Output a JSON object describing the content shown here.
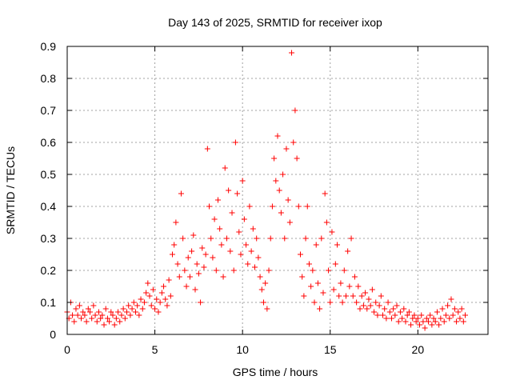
{
  "chart_data": {
    "type": "scatter",
    "title": "Day 143 of 2025, SRMTID for receiver ixop",
    "xlabel": "GPS time / hours",
    "ylabel": "SRMTID / TECUs",
    "xlim": [
      0,
      24
    ],
    "ylim": [
      0,
      0.9
    ],
    "x_ticks": [
      0,
      5,
      10,
      15,
      20
    ],
    "y_ticks": [
      0,
      0.1,
      0.2,
      0.3,
      0.4,
      0.5,
      0.6,
      0.7,
      0.8,
      0.9
    ],
    "x_tick_labels": [
      "0",
      "5",
      "10",
      "15",
      "20"
    ],
    "y_tick_labels": [
      "0",
      "0.1",
      "0.2",
      "0.3",
      "0.4",
      "0.5",
      "0.6",
      "0.7",
      "0.8",
      "0.9"
    ],
    "grid": true,
    "marker": "+",
    "color": "#ff0000",
    "series": [
      {
        "name": "SRMTID",
        "points": [
          [
            0.0,
            0.07
          ],
          [
            0.1,
            0.05
          ],
          [
            0.2,
            0.1
          ],
          [
            0.3,
            0.06
          ],
          [
            0.4,
            0.04
          ],
          [
            0.5,
            0.08
          ],
          [
            0.6,
            0.06
          ],
          [
            0.7,
            0.09
          ],
          [
            0.8,
            0.05
          ],
          [
            0.9,
            0.07
          ],
          [
            1.0,
            0.06
          ],
          [
            1.1,
            0.04
          ],
          [
            1.2,
            0.08
          ],
          [
            1.3,
            0.07
          ],
          [
            1.4,
            0.05
          ],
          [
            1.5,
            0.09
          ],
          [
            1.6,
            0.06
          ],
          [
            1.7,
            0.04
          ],
          [
            1.8,
            0.07
          ],
          [
            1.9,
            0.05
          ],
          [
            2.0,
            0.06
          ],
          [
            2.1,
            0.03
          ],
          [
            2.2,
            0.08
          ],
          [
            2.3,
            0.05
          ],
          [
            2.4,
            0.04
          ],
          [
            2.5,
            0.07
          ],
          [
            2.6,
            0.06
          ],
          [
            2.7,
            0.03
          ],
          [
            2.8,
            0.05
          ],
          [
            2.9,
            0.07
          ],
          [
            3.0,
            0.04
          ],
          [
            3.1,
            0.06
          ],
          [
            3.2,
            0.08
          ],
          [
            3.3,
            0.05
          ],
          [
            3.4,
            0.07
          ],
          [
            3.5,
            0.09
          ],
          [
            3.6,
            0.06
          ],
          [
            3.7,
            0.08
          ],
          [
            3.8,
            0.1
          ],
          [
            3.9,
            0.07
          ],
          [
            4.0,
            0.09
          ],
          [
            4.1,
            0.06
          ],
          [
            4.2,
            0.11
          ],
          [
            4.3,
            0.08
          ],
          [
            4.4,
            0.1
          ],
          [
            4.5,
            0.13
          ],
          [
            4.6,
            0.16
          ],
          [
            4.7,
            0.12
          ],
          [
            4.8,
            0.09
          ],
          [
            4.9,
            0.14
          ],
          [
            5.0,
            0.08
          ],
          [
            5.1,
            0.11
          ],
          [
            5.2,
            0.07
          ],
          [
            5.3,
            0.1
          ],
          [
            5.4,
            0.13
          ],
          [
            5.5,
            0.15
          ],
          [
            5.6,
            0.11
          ],
          [
            5.7,
            0.09
          ],
          [
            5.8,
            0.17
          ],
          [
            5.9,
            0.12
          ],
          [
            6.0,
            0.25
          ],
          [
            6.1,
            0.28
          ],
          [
            6.2,
            0.35
          ],
          [
            6.3,
            0.22
          ],
          [
            6.4,
            0.18
          ],
          [
            6.5,
            0.44
          ],
          [
            6.6,
            0.3
          ],
          [
            6.7,
            0.2
          ],
          [
            6.8,
            0.15
          ],
          [
            6.9,
            0.24
          ],
          [
            7.0,
            0.18
          ],
          [
            7.1,
            0.26
          ],
          [
            7.2,
            0.31
          ],
          [
            7.3,
            0.14
          ],
          [
            7.4,
            0.22
          ],
          [
            7.5,
            0.19
          ],
          [
            7.6,
            0.1
          ],
          [
            7.7,
            0.27
          ],
          [
            7.8,
            0.21
          ],
          [
            7.9,
            0.25
          ],
          [
            8.0,
            0.58
          ],
          [
            8.1,
            0.4
          ],
          [
            8.2,
            0.3
          ],
          [
            8.3,
            0.24
          ],
          [
            8.4,
            0.36
          ],
          [
            8.5,
            0.2
          ],
          [
            8.6,
            0.42
          ],
          [
            8.7,
            0.33
          ],
          [
            8.8,
            0.28
          ],
          [
            8.9,
            0.18
          ],
          [
            9.0,
            0.52
          ],
          [
            9.1,
            0.3
          ],
          [
            9.2,
            0.45
          ],
          [
            9.3,
            0.26
          ],
          [
            9.4,
            0.38
          ],
          [
            9.5,
            0.2
          ],
          [
            9.6,
            0.6
          ],
          [
            9.7,
            0.44
          ],
          [
            9.8,
            0.32
          ],
          [
            9.9,
            0.25
          ],
          [
            10.0,
            0.48
          ],
          [
            10.1,
            0.36
          ],
          [
            10.2,
            0.28
          ],
          [
            10.3,
            0.22
          ],
          [
            10.4,
            0.4
          ],
          [
            10.5,
            0.26
          ],
          [
            10.6,
            0.33
          ],
          [
            10.7,
            0.21
          ],
          [
            10.8,
            0.3
          ],
          [
            10.9,
            0.24
          ],
          [
            11.0,
            0.18
          ],
          [
            11.1,
            0.14
          ],
          [
            11.2,
            0.1
          ],
          [
            11.3,
            0.16
          ],
          [
            11.4,
            0.08
          ],
          [
            11.5,
            0.2
          ],
          [
            11.6,
            0.3
          ],
          [
            11.7,
            0.4
          ],
          [
            11.8,
            0.55
          ],
          [
            11.9,
            0.48
          ],
          [
            12.0,
            0.62
          ],
          [
            12.1,
            0.45
          ],
          [
            12.2,
            0.38
          ],
          [
            12.3,
            0.5
          ],
          [
            12.4,
            0.3
          ],
          [
            12.5,
            0.58
          ],
          [
            12.6,
            0.42
          ],
          [
            12.7,
            0.35
          ],
          [
            12.8,
            0.88
          ],
          [
            12.9,
            0.6
          ],
          [
            13.0,
            0.7
          ],
          [
            13.1,
            0.55
          ],
          [
            13.2,
            0.4
          ],
          [
            13.3,
            0.25
          ],
          [
            13.4,
            0.18
          ],
          [
            13.5,
            0.12
          ],
          [
            13.6,
            0.3
          ],
          [
            13.7,
            0.4
          ],
          [
            13.8,
            0.22
          ],
          [
            13.9,
            0.15
          ],
          [
            14.0,
            0.2
          ],
          [
            14.1,
            0.1
          ],
          [
            14.2,
            0.28
          ],
          [
            14.3,
            0.16
          ],
          [
            14.4,
            0.08
          ],
          [
            14.5,
            0.3
          ],
          [
            14.6,
            0.13
          ],
          [
            14.7,
            0.44
          ],
          [
            14.8,
            0.35
          ],
          [
            14.9,
            0.2
          ],
          [
            15.0,
            0.1
          ],
          [
            15.1,
            0.32
          ],
          [
            15.2,
            0.14
          ],
          [
            15.3,
            0.22
          ],
          [
            15.4,
            0.28
          ],
          [
            15.5,
            0.12
          ],
          [
            15.6,
            0.16
          ],
          [
            15.7,
            0.1
          ],
          [
            15.8,
            0.2
          ],
          [
            15.9,
            0.12
          ],
          [
            16.0,
            0.26
          ],
          [
            16.1,
            0.15
          ],
          [
            16.2,
            0.3
          ],
          [
            16.3,
            0.12
          ],
          [
            16.4,
            0.18
          ],
          [
            16.5,
            0.1
          ],
          [
            16.6,
            0.15
          ],
          [
            16.7,
            0.08
          ],
          [
            16.8,
            0.12
          ],
          [
            16.9,
            0.09
          ],
          [
            17.0,
            0.13
          ],
          [
            17.1,
            0.08
          ],
          [
            17.2,
            0.11
          ],
          [
            17.3,
            0.09
          ],
          [
            17.4,
            0.14
          ],
          [
            17.5,
            0.07
          ],
          [
            17.6,
            0.1
          ],
          [
            17.7,
            0.06
          ],
          [
            17.8,
            0.09
          ],
          [
            17.9,
            0.12
          ],
          [
            18.0,
            0.06
          ],
          [
            18.1,
            0.08
          ],
          [
            18.2,
            0.05
          ],
          [
            18.3,
            0.1
          ],
          [
            18.4,
            0.07
          ],
          [
            18.5,
            0.05
          ],
          [
            18.6,
            0.08
          ],
          [
            18.7,
            0.06
          ],
          [
            18.8,
            0.09
          ],
          [
            18.9,
            0.04
          ],
          [
            19.0,
            0.07
          ],
          [
            19.1,
            0.05
          ],
          [
            19.2,
            0.08
          ],
          [
            19.3,
            0.04
          ],
          [
            19.4,
            0.06
          ],
          [
            19.5,
            0.07
          ],
          [
            19.6,
            0.03
          ],
          [
            19.7,
            0.05
          ],
          [
            19.8,
            0.06
          ],
          [
            19.9,
            0.04
          ],
          [
            20.0,
            0.05
          ],
          [
            20.1,
            0.03
          ],
          [
            20.2,
            0.06
          ],
          [
            20.3,
            0.04
          ],
          [
            20.4,
            0.02
          ],
          [
            20.5,
            0.05
          ],
          [
            20.6,
            0.04
          ],
          [
            20.7,
            0.06
          ],
          [
            20.8,
            0.03
          ],
          [
            20.9,
            0.05
          ],
          [
            21.0,
            0.04
          ],
          [
            21.1,
            0.07
          ],
          [
            21.2,
            0.03
          ],
          [
            21.3,
            0.05
          ],
          [
            21.4,
            0.08
          ],
          [
            21.5,
            0.04
          ],
          [
            21.6,
            0.06
          ],
          [
            21.7,
            0.09
          ],
          [
            21.8,
            0.05
          ],
          [
            21.9,
            0.11
          ],
          [
            22.0,
            0.06
          ],
          [
            22.1,
            0.08
          ],
          [
            22.2,
            0.04
          ],
          [
            22.3,
            0.07
          ],
          [
            22.4,
            0.05
          ],
          [
            22.5,
            0.08
          ],
          [
            22.6,
            0.04
          ],
          [
            22.7,
            0.06
          ]
        ]
      }
    ]
  }
}
